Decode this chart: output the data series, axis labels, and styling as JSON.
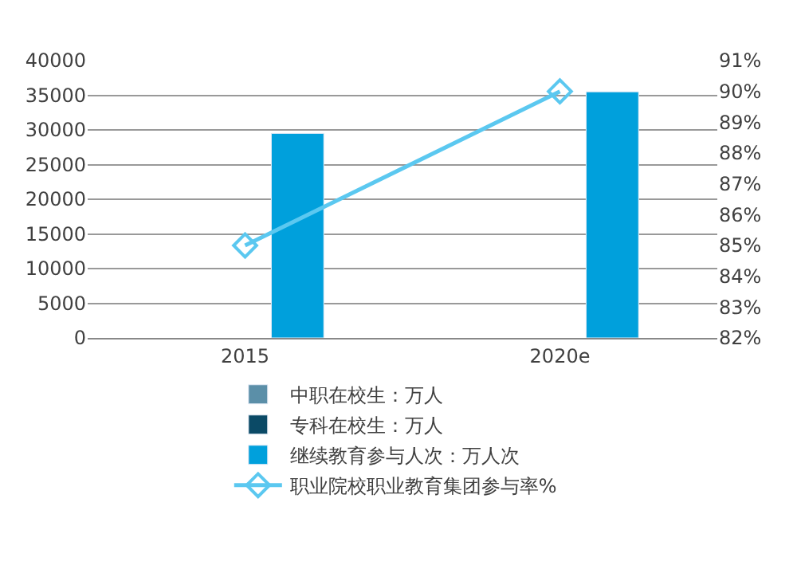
{
  "chart_data": {
    "type": "bar",
    "categories": [
      "2015",
      "2020e"
    ],
    "series": [
      {
        "name": "中职在校生：万人",
        "color": "#5b8fa8",
        "values": [
          null,
          null
        ]
      },
      {
        "name": "专科在校生：万人",
        "color": "#0b4a66",
        "values": [
          null,
          null
        ]
      },
      {
        "name": "继续教育参与人次：万人次",
        "color": "#00a0dc",
        "values": [
          29500,
          35500
        ]
      },
      {
        "name": "职业院校职业教育集团参与率%",
        "color": "#5bc8f0",
        "type": "line",
        "axis": "y2",
        "marker": "diamond",
        "values": [
          85,
          90
        ]
      }
    ],
    "ylim": [
      0,
      40000
    ],
    "yticks": [
      0,
      5000,
      10000,
      15000,
      20000,
      25000,
      30000,
      35000,
      40000
    ],
    "y2lim": [
      82,
      91
    ],
    "y2ticks": [
      {
        "value": 82,
        "label": "82%"
      },
      {
        "value": 83,
        "label": "83%"
      },
      {
        "value": 84,
        "label": "84%"
      },
      {
        "value": 85,
        "label": "85%"
      },
      {
        "value": 86,
        "label": "86%"
      },
      {
        "value": 87,
        "label": "87%"
      },
      {
        "value": 88,
        "label": "88%"
      },
      {
        "value": 89,
        "label": "89%"
      },
      {
        "value": 90,
        "label": "90%"
      },
      {
        "value": 91,
        "label": "91%"
      }
    ],
    "grid": "y",
    "legend": "bottom"
  }
}
